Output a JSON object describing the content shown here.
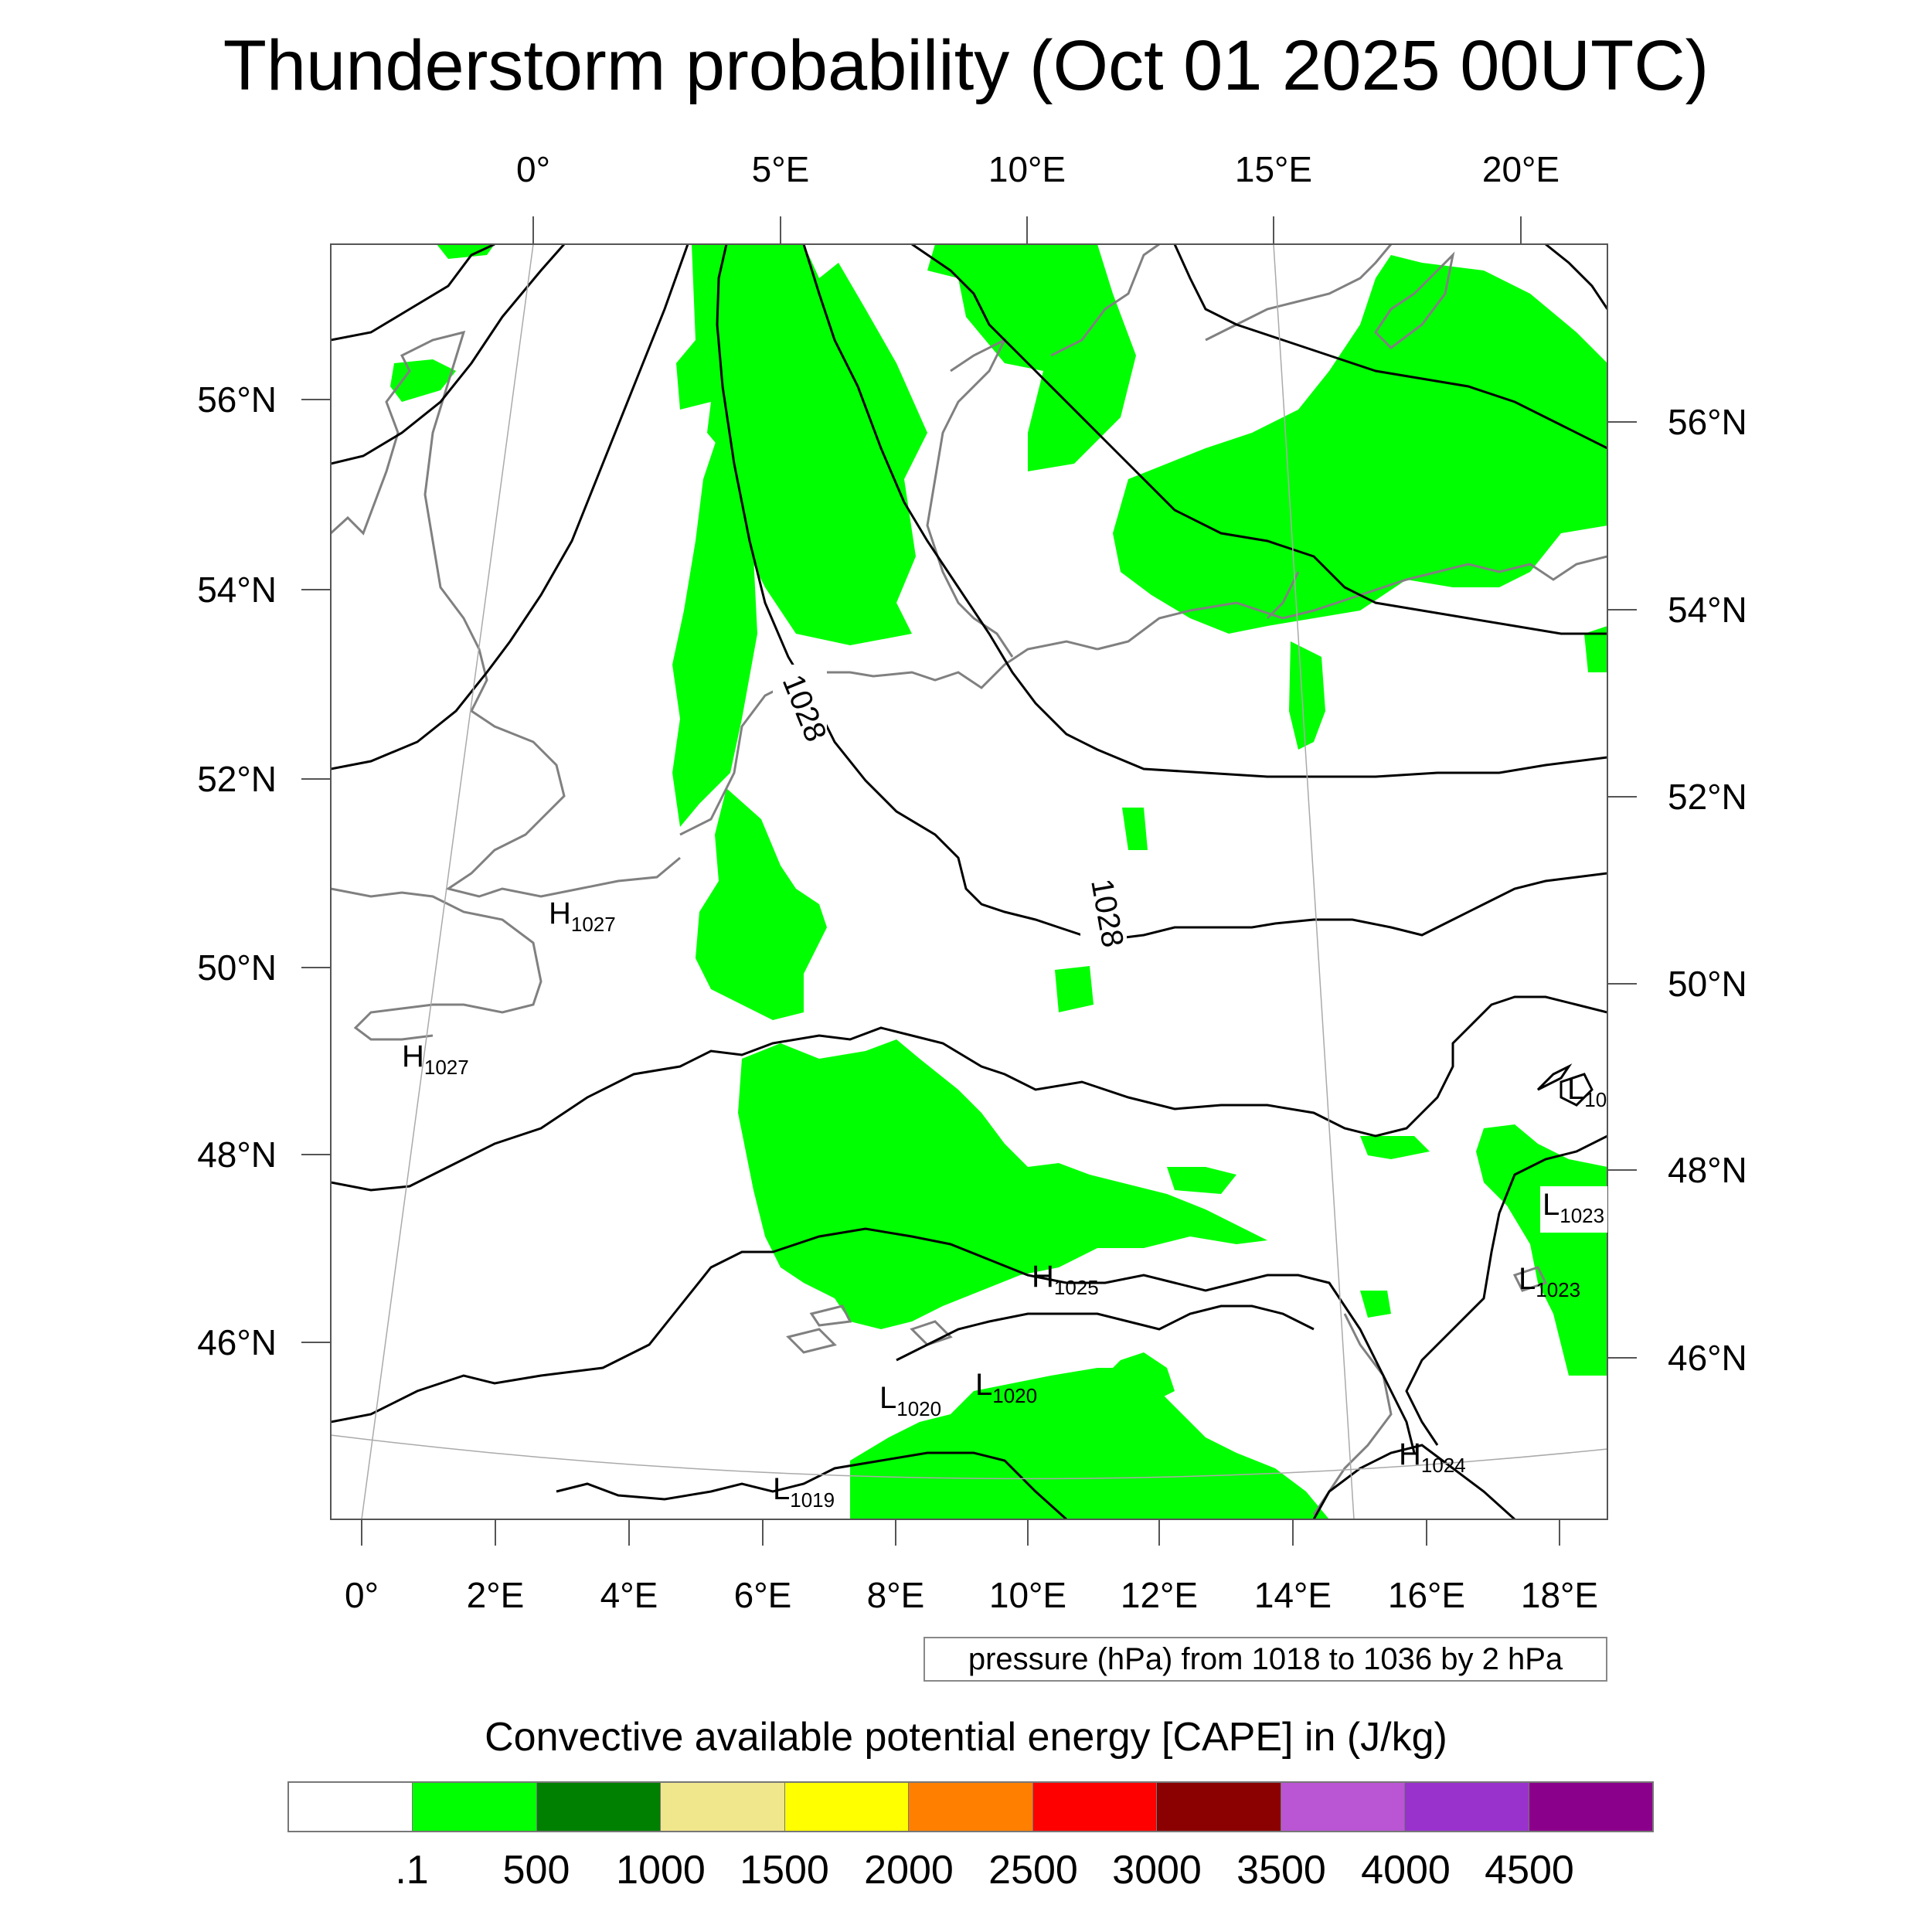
{
  "title": "Thunderstorm probability (Oct 01 2025 00UTC)",
  "map": {
    "top_lon_labels": [
      "0°",
      "5°E",
      "10°E",
      "15°E",
      "20°E"
    ],
    "bottom_lon_labels": [
      "0°",
      "2°E",
      "4°E",
      "6°E",
      "8°E",
      "10°E",
      "12°E",
      "14°E",
      "16°E",
      "18°E"
    ],
    "left_lat_labels": [
      "56°N",
      "54°N",
      "52°N",
      "50°N",
      "48°N",
      "46°N"
    ],
    "right_lat_labels": [
      "56°N",
      "54°N",
      "52°N",
      "50°N",
      "48°N",
      "46°N"
    ],
    "contour_labels": [
      "1028",
      "1028"
    ],
    "pressure_centers": [
      {
        "type": "H",
        "value": "1027"
      },
      {
        "type": "H",
        "value": "1027"
      },
      {
        "type": "H",
        "value": "1025"
      },
      {
        "type": "H",
        "value": "1024"
      },
      {
        "type": "L",
        "value": "1020"
      },
      {
        "type": "L",
        "value": "1020"
      },
      {
        "type": "L",
        "value": "1019"
      },
      {
        "type": "L",
        "value": "10"
      },
      {
        "type": "L",
        "value": "1023"
      },
      {
        "type": "L",
        "value": "1023"
      }
    ],
    "cape_fill_color": "#00ff00",
    "coastline_color": "#808080",
    "isobar_color": "#000000"
  },
  "contour_note": "pressure (hPa) from 1018 to 1036 by 2 hPa",
  "colorbar": {
    "title": "Convective available potential energy [CAPE] in (J/kg)",
    "colors": [
      "#ffffff",
      "#00ff00",
      "#008000",
      "#f0e68c",
      "#ffff00",
      "#ff8000",
      "#ff0000",
      "#8b0000",
      "#ba55d3",
      "#9932cc",
      "#8b008b"
    ],
    "labels": [
      ".1",
      "500",
      "1000",
      "1500",
      "2000",
      "2500",
      "3000",
      "3500",
      "4000",
      "4500"
    ]
  }
}
